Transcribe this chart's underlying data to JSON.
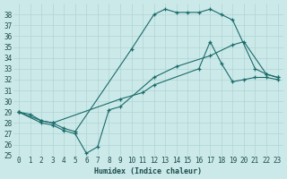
{
  "xlabel": "Humidex (Indice chaleur)",
  "bg_color": "#cce9e9",
  "grid_color": "#b0d4d4",
  "line_color": "#1a6b6b",
  "xlim": [
    -0.5,
    23.5
  ],
  "ylim": [
    25,
    39
  ],
  "xticks": [
    0,
    1,
    2,
    3,
    4,
    5,
    6,
    7,
    8,
    9,
    10,
    11,
    12,
    13,
    14,
    15,
    16,
    17,
    18,
    19,
    20,
    21,
    22,
    23
  ],
  "yticks": [
    25,
    26,
    27,
    28,
    29,
    30,
    31,
    32,
    33,
    34,
    35,
    36,
    37,
    38
  ],
  "line1_x": [
    0,
    2,
    3,
    4,
    5,
    6,
    7,
    8,
    9,
    12,
    14,
    17,
    19,
    20,
    22,
    23
  ],
  "line1_y": [
    29,
    28,
    27.8,
    27.3,
    27.0,
    25.2,
    25.8,
    29.2,
    29.5,
    32.2,
    33.2,
    34.2,
    35.2,
    35.5,
    32.5,
    32.2
  ],
  "line2_x": [
    0,
    1,
    2,
    3,
    4,
    5,
    10,
    12,
    13,
    14,
    15,
    16,
    17,
    18,
    19,
    21,
    22,
    23
  ],
  "line2_y": [
    29,
    28.8,
    28.2,
    28.0,
    27.5,
    27.2,
    34.8,
    38.0,
    38.5,
    38.2,
    38.2,
    38.2,
    38.5,
    38.0,
    37.5,
    33.0,
    32.5,
    32.2
  ],
  "line3_x": [
    0,
    2,
    3,
    9,
    11,
    12,
    16,
    17,
    18,
    19,
    20,
    21,
    22,
    23
  ],
  "line3_y": [
    29,
    28.2,
    28.0,
    30.2,
    30.8,
    31.5,
    33.0,
    35.5,
    33.5,
    31.8,
    32.0,
    32.2,
    32.2,
    32.0
  ]
}
